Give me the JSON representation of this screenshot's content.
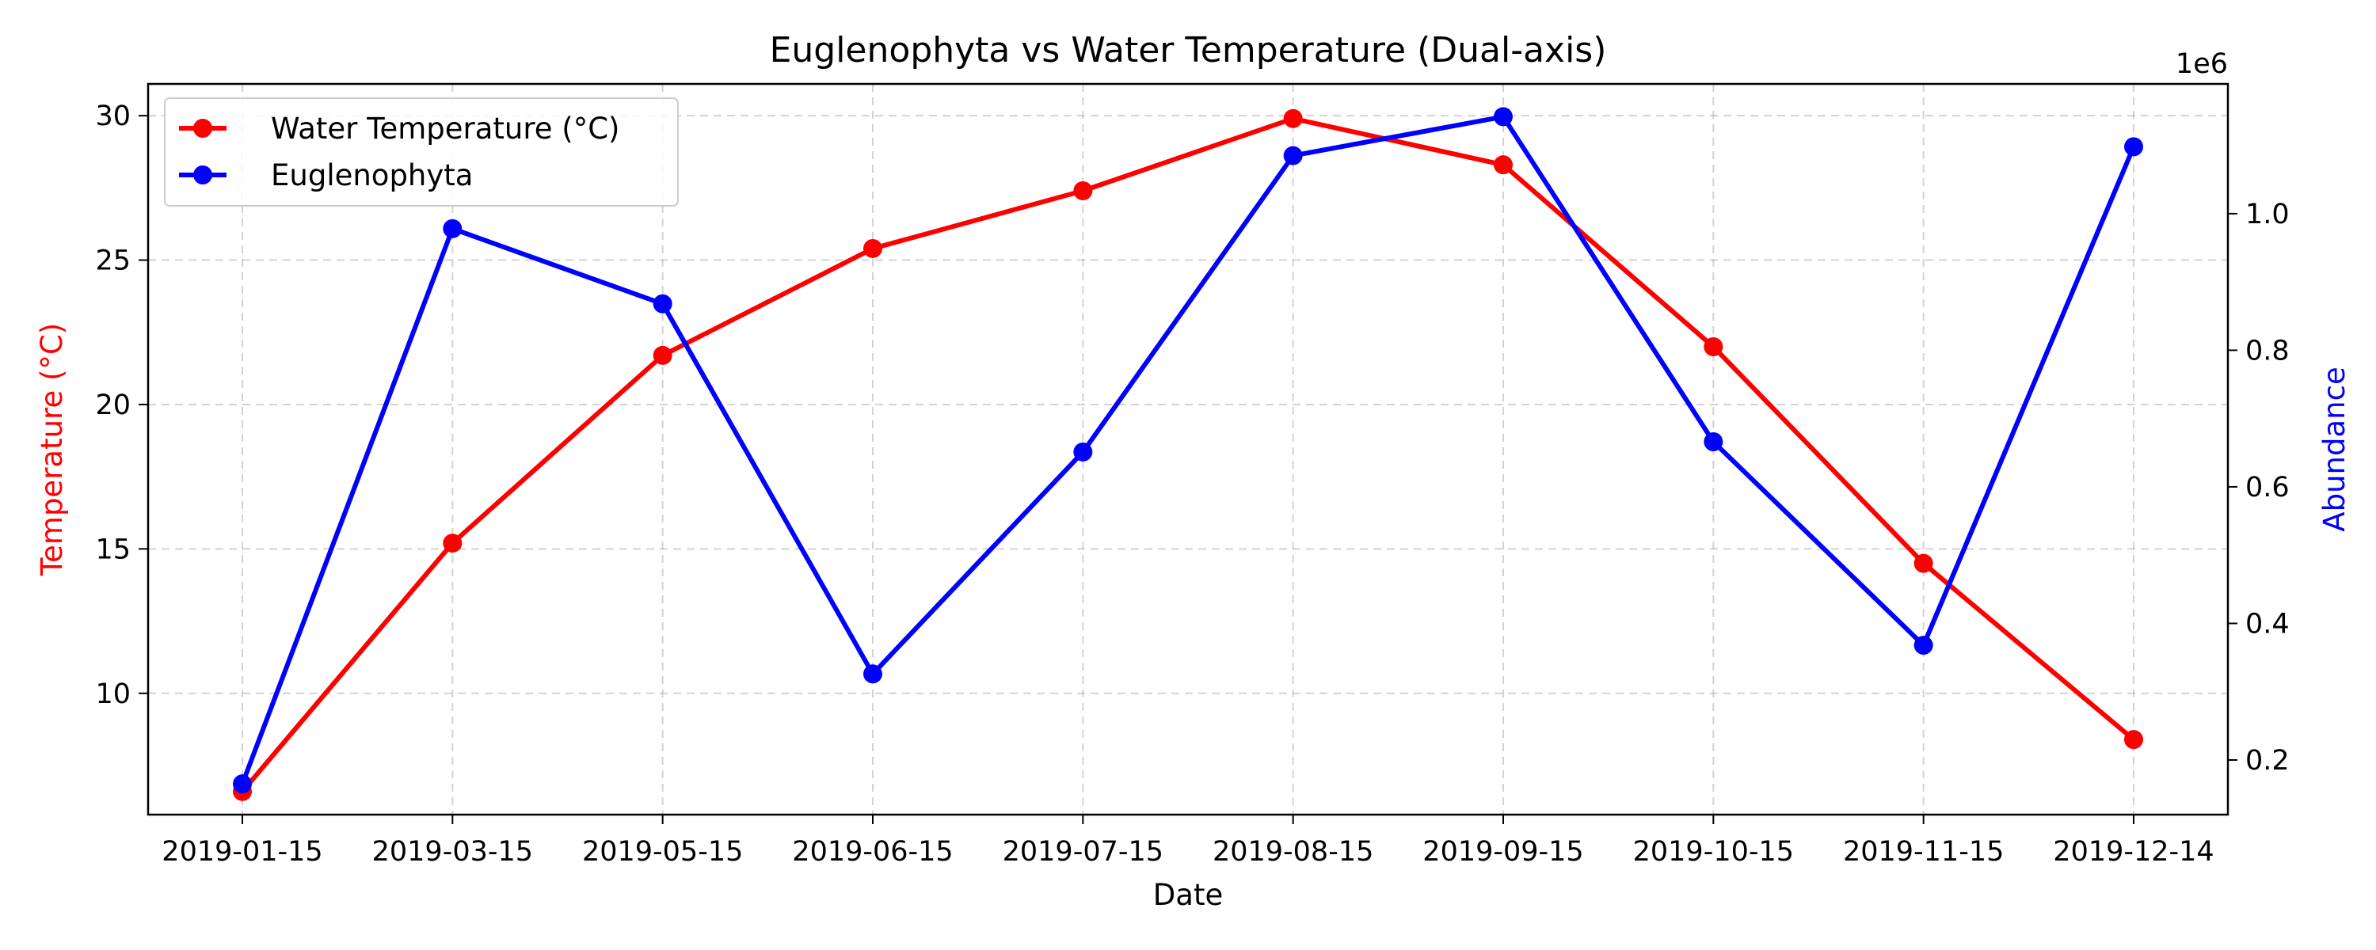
{
  "chart_data": {
    "type": "line",
    "title": "Euglenophyta vs Water Temperature (Dual-axis)",
    "xlabel": "Date",
    "ylabel_left": "Temperature (°C)",
    "ylabel_right": "Abundance",
    "right_axis_multiplier": "1e6",
    "categories": [
      "2019-01-15",
      "2019-03-15",
      "2019-05-15",
      "2019-06-15",
      "2019-07-15",
      "2019-08-15",
      "2019-09-15",
      "2019-10-15",
      "2019-11-15",
      "2019-12-14"
    ],
    "left_ylim": [
      5.8,
      31.1
    ],
    "right_ylim": [
      120000,
      1190000
    ],
    "left_ticks": [
      "10",
      "15",
      "20",
      "25",
      "30"
    ],
    "left_tick_values": [
      10,
      15,
      20,
      25,
      30
    ],
    "right_ticks": [
      "0.2",
      "0.4",
      "0.6",
      "0.8",
      "1.0"
    ],
    "right_tick_values": [
      200000,
      400000,
      600000,
      800000,
      1000000
    ],
    "grid": true,
    "legend_position": "upper-left",
    "series": [
      {
        "name": "Water Temperature (°C)",
        "axis": "left",
        "color": "#ff0000",
        "values": [
          6.6,
          15.2,
          21.7,
          25.4,
          27.4,
          29.9,
          28.3,
          22.0,
          14.5,
          8.4
        ]
      },
      {
        "name": "Euglenophyta",
        "axis": "right",
        "color": "#0000ff",
        "values": [
          165000,
          978000,
          868000,
          326000,
          651000,
          1085000,
          1142000,
          666000,
          368000,
          1098000
        ]
      }
    ],
    "label_colors": {
      "left": "#ff0000",
      "right": "#0000ff"
    }
  }
}
